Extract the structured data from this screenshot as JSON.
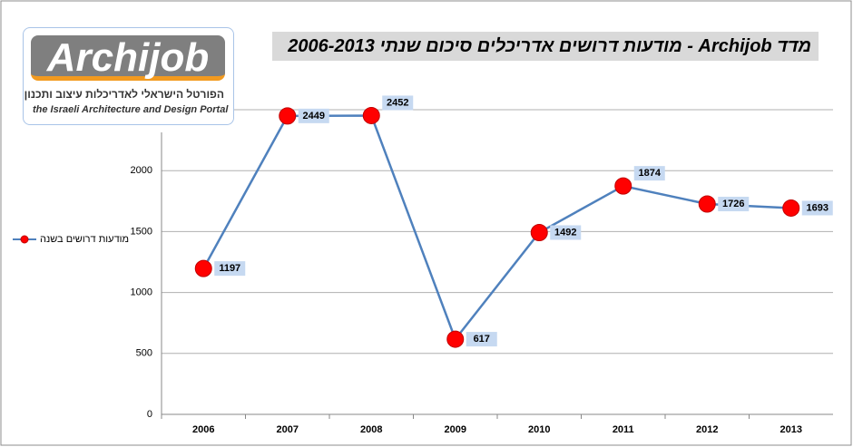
{
  "chart_data": {
    "type": "line",
    "title": "מדד Archijob - מודעות דרושים אדריכלים  סיכום שנתי 2006-2013",
    "categories": [
      "2006",
      "2007",
      "2008",
      "2009",
      "2010",
      "2011",
      "2012",
      "2013"
    ],
    "series": [
      {
        "name": "מודעות דרושים בשנה",
        "color": "#4f81bd",
        "marker_color": "#ff0000",
        "values": [
          1197,
          2449,
          2452,
          617,
          1492,
          1874,
          1726,
          1693
        ]
      }
    ],
    "ylim": [
      0,
      2500
    ],
    "yticks": [
      0,
      500,
      1000,
      1500,
      2000
    ],
    "grid": true,
    "legend": "left"
  },
  "logo": {
    "name": "Archijob",
    "tagline_he": "הפורטל הישראלי לאדריכלות עיצוב ותכנון",
    "tagline_en": "the Israeli Architecture and Design Portal"
  }
}
